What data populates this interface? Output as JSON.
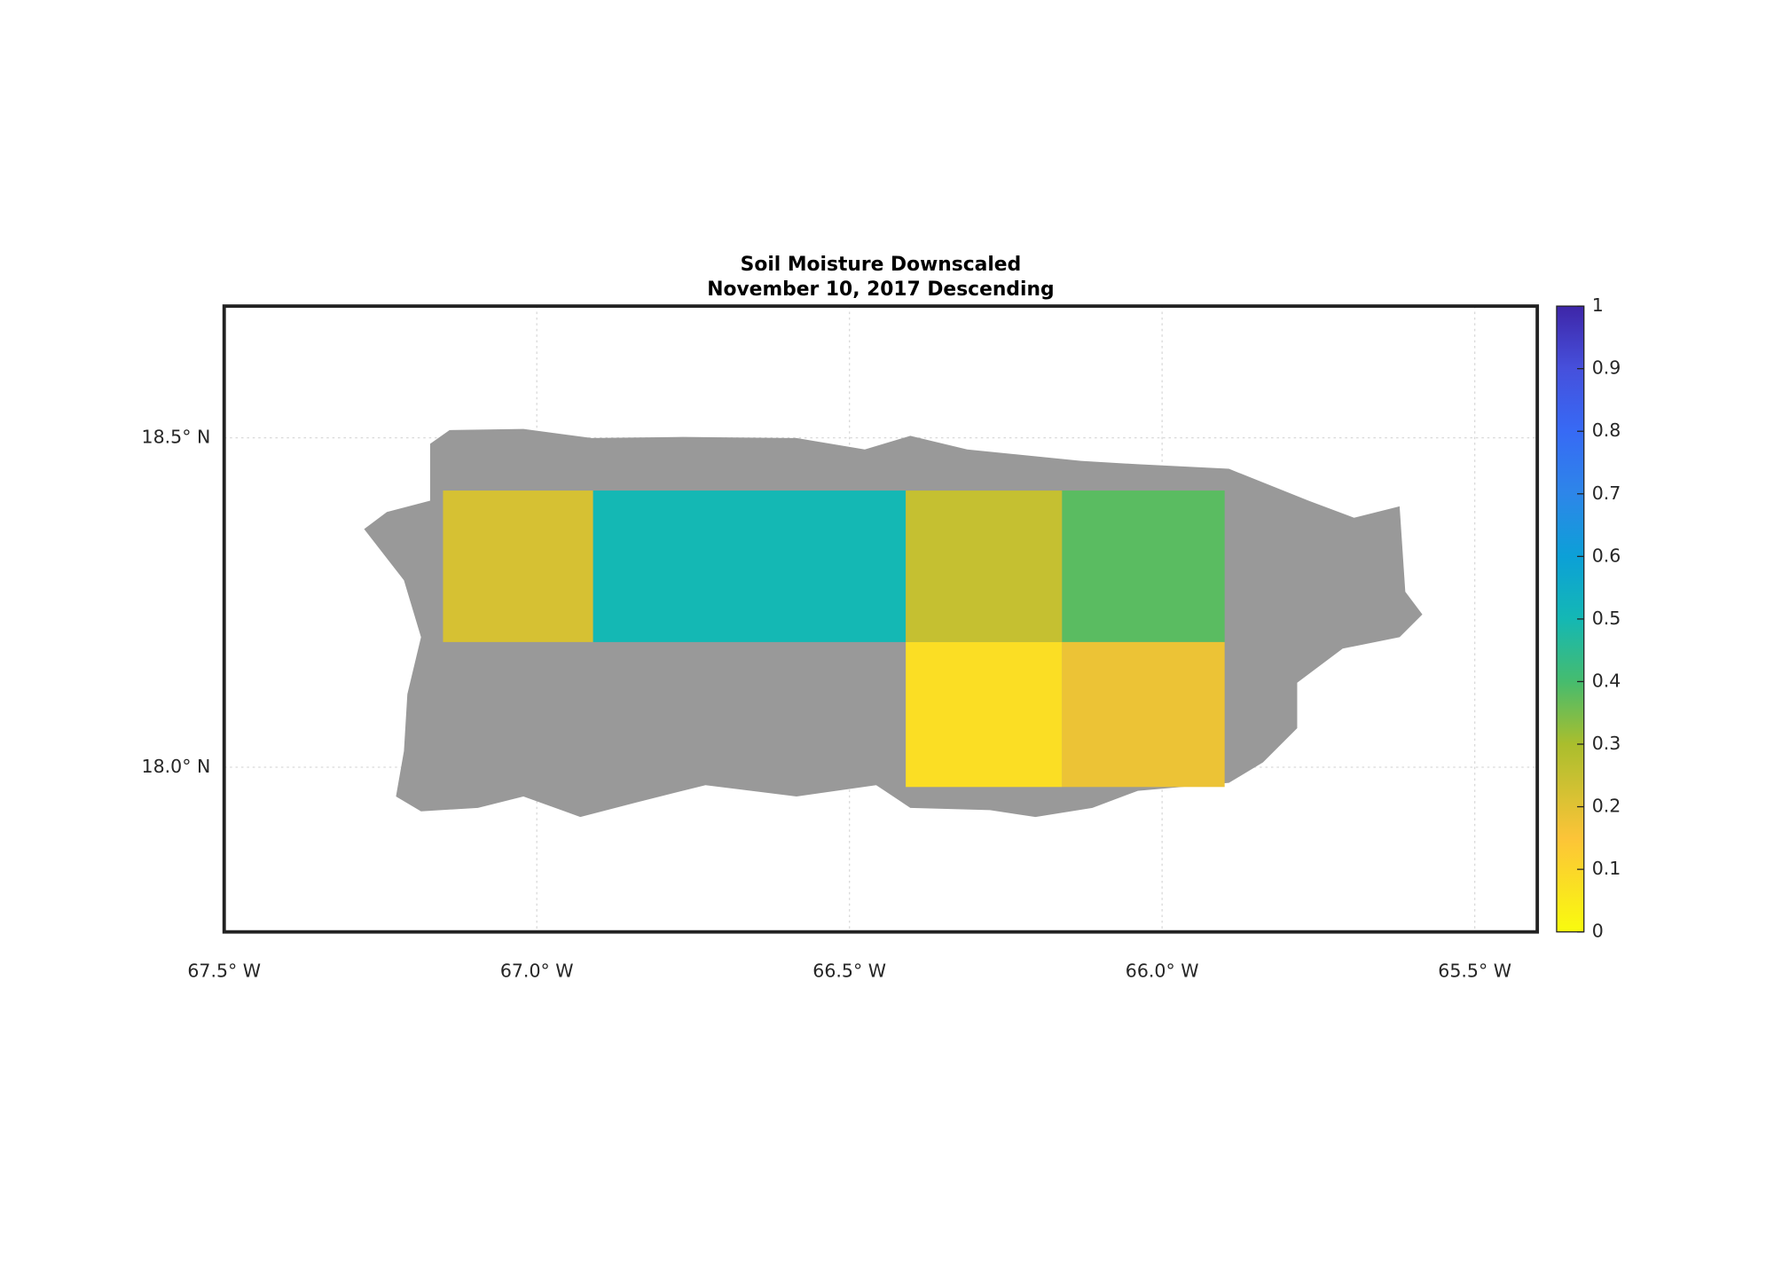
{
  "chart_data": {
    "type": "heatmap",
    "title": "Soil Moisture Downscaled",
    "subtitle": "November 10, 2017 Descending",
    "x_edges": [
      -67.15,
      -66.91,
      -66.41,
      -66.16,
      -65.9
    ],
    "y_edges": [
      18.42,
      18.19,
      17.97
    ],
    "values": [
      [
        0.22,
        0.5,
        0.25,
        0.38
      ],
      [
        null,
        null,
        0.08,
        0.18
      ]
    ],
    "colormap": "parula",
    "xlim": [
      -67.5,
      -65.4
    ],
    "ylim": [
      17.75,
      18.7
    ],
    "xticks": [
      {
        "value": -67.5,
        "label": "67.5° W"
      },
      {
        "value": -67.0,
        "label": "67.0° W"
      },
      {
        "value": -66.5,
        "label": "66.5° W"
      },
      {
        "value": -66.0,
        "label": "66.0° W"
      },
      {
        "value": -65.5,
        "label": "65.5° W"
      }
    ],
    "yticks": [
      {
        "value": 18.0,
        "label": "18.0° N"
      },
      {
        "value": 18.5,
        "label": "18.5° N"
      }
    ],
    "clim": [
      0,
      1
    ],
    "cticks": [
      0,
      0.1,
      0.2,
      0.3,
      0.4,
      0.5,
      0.6,
      0.7,
      0.8,
      0.9,
      1
    ],
    "grid": true
  }
}
